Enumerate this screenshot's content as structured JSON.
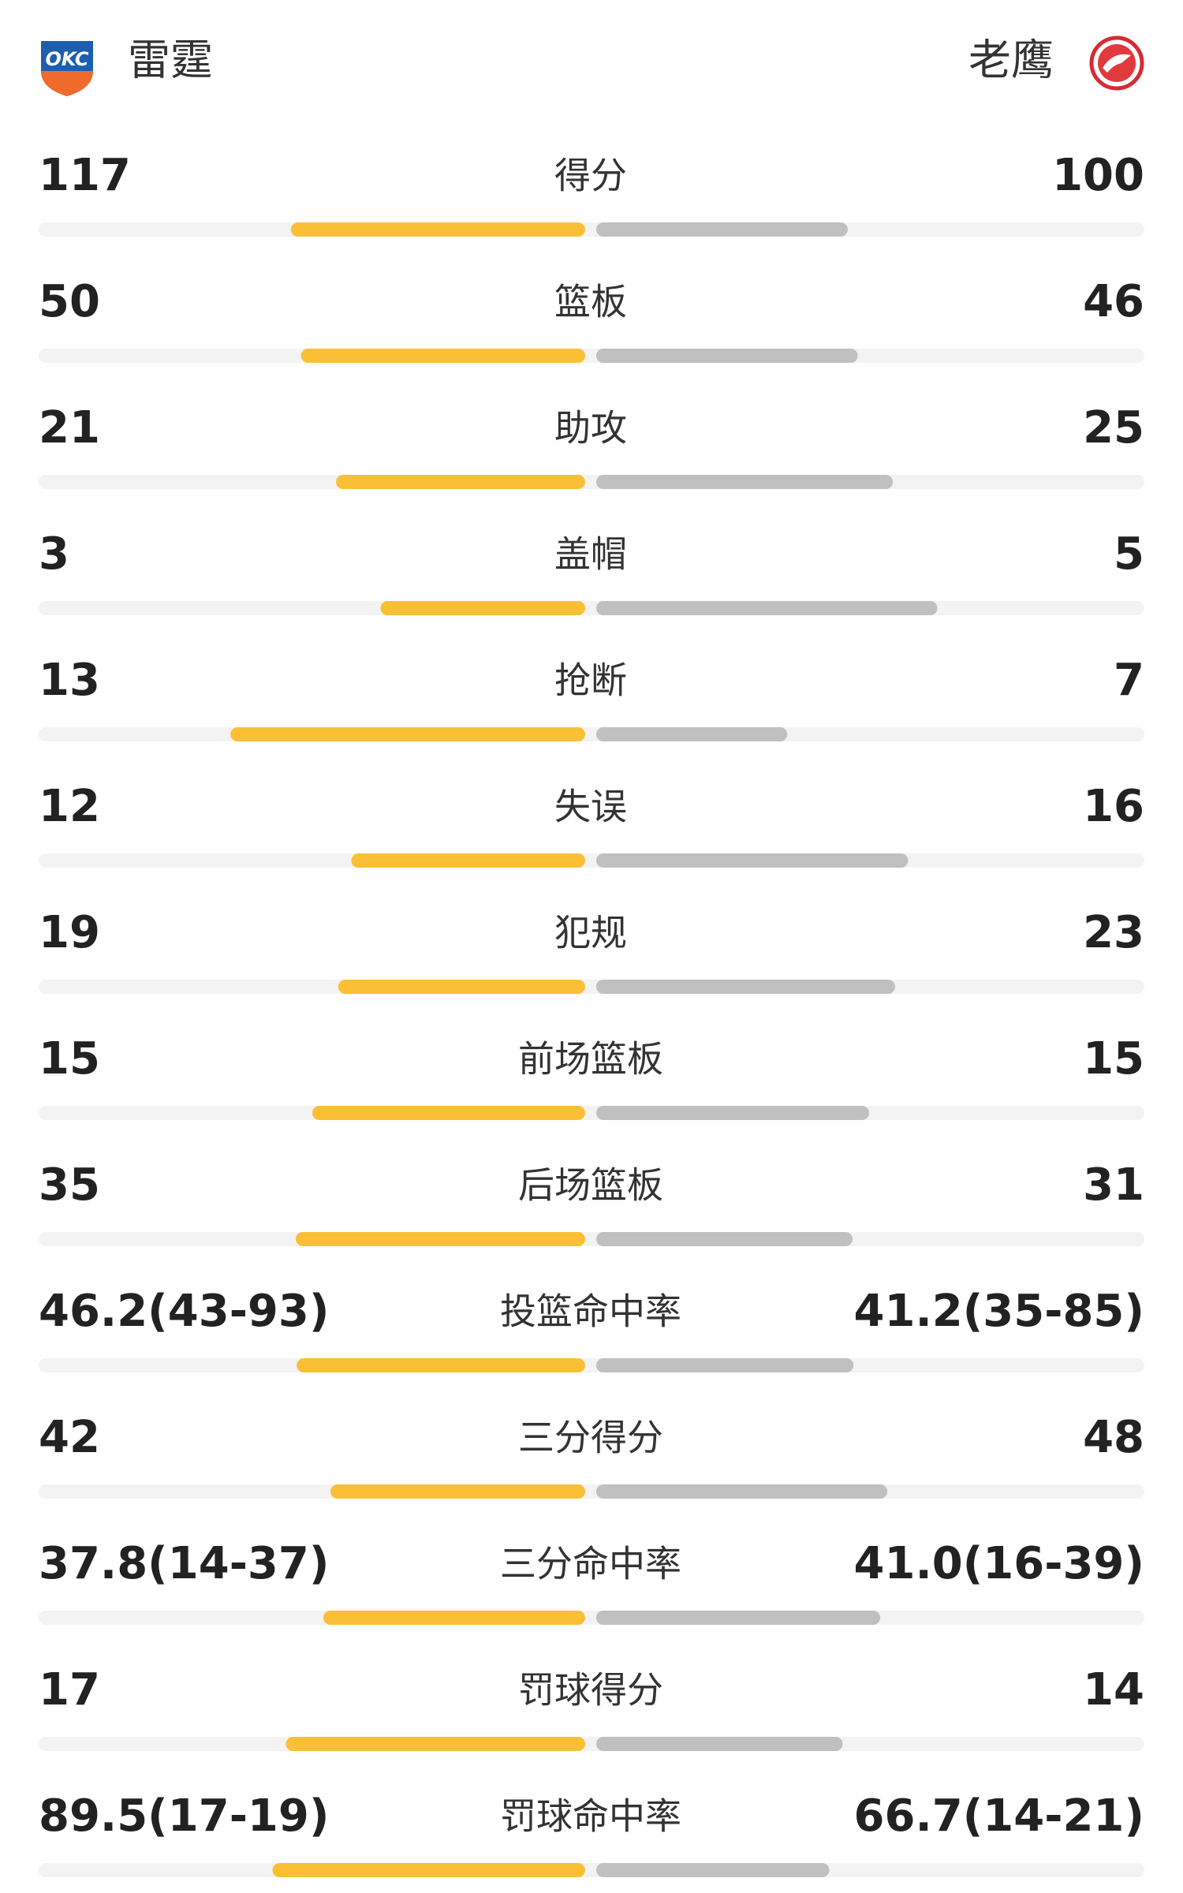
{
  "header": {
    "home_team": "雷霆",
    "away_team": "老鹰"
  },
  "rows": [
    {
      "label": "得分",
      "home": 117,
      "away": 100
    },
    {
      "label": "篮板",
      "home": 50,
      "away": 46
    },
    {
      "label": "助攻",
      "home": 21,
      "away": 25
    },
    {
      "label": "盖帽",
      "home": 3,
      "away": 5
    },
    {
      "label": "抢断",
      "home": 13,
      "away": 7
    },
    {
      "label": "失误",
      "home": 12,
      "away": 16
    },
    {
      "label": "犯规",
      "home": 19,
      "away": 23
    },
    {
      "label": "前场篮板",
      "home": 15,
      "away": 15
    },
    {
      "label": "后场篮板",
      "home": 35,
      "away": 31
    },
    {
      "label": "投篮命中率",
      "home": {
        "value": 46.2,
        "label": "46.2(43-93)"
      },
      "away": {
        "value": 41.2,
        "label": "41.2(35-85)"
      }
    },
    {
      "label": "三分得分",
      "home": 42,
      "away": 48
    },
    {
      "label": "三分命中率",
      "home": {
        "value": 37.8,
        "label": "37.8(14-37)"
      },
      "away": {
        "value": 41.0,
        "label": "41.0(16-39)"
      }
    },
    {
      "label": "罚球得分",
      "home": 17,
      "away": 14
    },
    {
      "label": "罚球命中率",
      "home": {
        "value": 89.5,
        "label": "89.5(17-19)"
      },
      "away": {
        "value": 66.7,
        "label": "66.7(14-21)"
      }
    }
  ],
  "colors": {
    "home": "#fbbf35",
    "away": "#c0c0c0",
    "track": "#f3f3f3"
  }
}
